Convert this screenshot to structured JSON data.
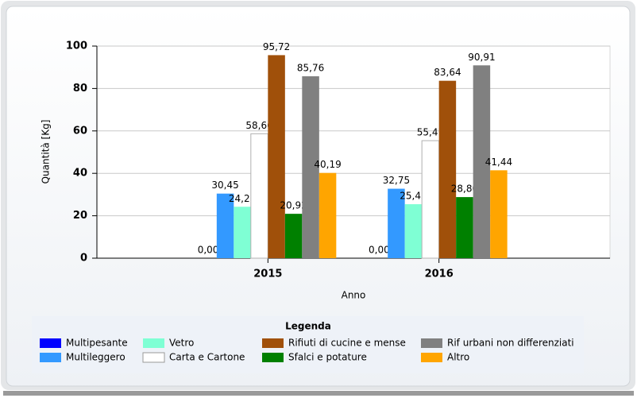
{
  "chart_data": {
    "type": "bar",
    "x_label": "Anno",
    "y_label": "Quantità [Kg]",
    "legend_title": "Legenda",
    "categories": [
      "2015",
      "2016"
    ],
    "ylim": [
      0,
      100
    ],
    "yticks": [
      0,
      20,
      40,
      60,
      80,
      100
    ],
    "grid": true,
    "series": [
      {
        "name": "Multipesante",
        "color": "#0000ff",
        "values": [
          0,
          0
        ],
        "value_labels": [
          "0,00",
          "0,00"
        ]
      },
      {
        "name": "Multileggero",
        "color": "#3399ff",
        "values": [
          30.45,
          32.75
        ],
        "value_labels": [
          "30,45",
          "32,75"
        ]
      },
      {
        "name": "Vetro",
        "color": "#7fffd4",
        "values": [
          24.25,
          25.45
        ],
        "value_labels": [
          "24,25",
          "25,45"
        ]
      },
      {
        "name": "Carta e Cartone",
        "color": "#ffffff",
        "values": [
          58.66,
          55.41
        ],
        "value_labels": [
          "58,66",
          "55,41"
        ]
      },
      {
        "name": "Rifiuti di cucine e mense",
        "color": "#a0500a",
        "values": [
          95.72,
          83.64
        ],
        "value_labels": [
          "95,72",
          "83,64"
        ]
      },
      {
        "name": "Sfalci e potature",
        "color": "#008000",
        "values": [
          20.92,
          28.8
        ],
        "value_labels": [
          "20,92",
          "28,80"
        ]
      },
      {
        "name": "Rif urbani non differenziati",
        "color": "#808080",
        "values": [
          85.76,
          90.91
        ],
        "value_labels": [
          "85,76",
          "90,91"
        ]
      },
      {
        "name": "Altro",
        "color": "#ffa500",
        "values": [
          40.19,
          41.44
        ],
        "value_labels": [
          "40,19",
          "41,44"
        ]
      }
    ]
  }
}
